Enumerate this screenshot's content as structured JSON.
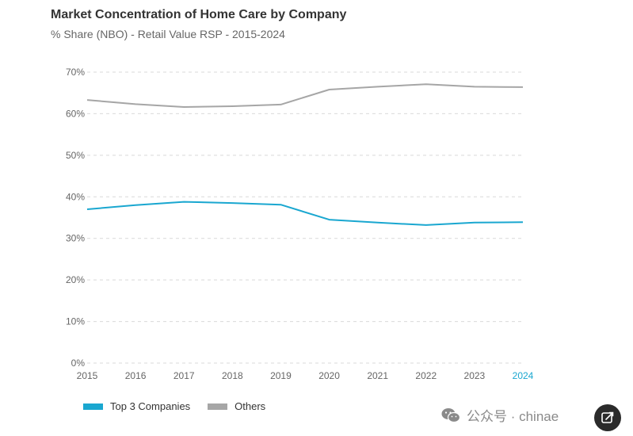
{
  "chart_data": {
    "type": "line",
    "title": "Market Concentration of Home Care by Company",
    "subtitle": "% Share (NBO) - Retail Value RSP - 2015-2024",
    "categories": [
      "2015",
      "2016",
      "2017",
      "2018",
      "2019",
      "2020",
      "2021",
      "2022",
      "2023",
      "2024"
    ],
    "highlighted_category": "2024",
    "y_ticks": [
      "0%",
      "10%",
      "20%",
      "30%",
      "40%",
      "50%",
      "60%",
      "70%"
    ],
    "ylim": [
      0,
      70
    ],
    "grid": true,
    "legend_position": "bottom-left",
    "series": [
      {
        "name": "Top 3 Companies",
        "color": "#1aa7d0",
        "values": [
          37.0,
          38.0,
          38.8,
          38.5,
          38.1,
          34.5,
          33.8,
          33.2,
          33.8,
          33.9
        ]
      },
      {
        "name": "Others",
        "color": "#a6a6a6",
        "values": [
          63.3,
          62.3,
          61.6,
          61.8,
          62.2,
          65.8,
          66.5,
          67.1,
          66.5,
          66.4
        ]
      }
    ],
    "colors": {
      "grid": "#d9d9d9",
      "axis_text": "#666666",
      "highlight_text": "#1aa7d0"
    }
  },
  "watermark": {
    "text": "公众号 · chinae",
    "icon": "wechat-icon"
  },
  "corner_button": {
    "icon": "edit-icon"
  }
}
